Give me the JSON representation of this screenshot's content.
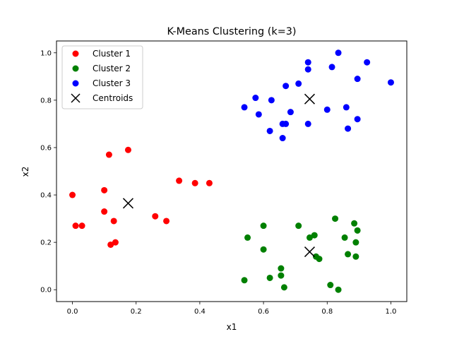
{
  "chart_data": {
    "type": "scatter",
    "title": "K-Means Clustering (k=3)",
    "xlabel": "x1",
    "ylabel": "x2",
    "xlim": [
      -0.05,
      1.05
    ],
    "ylim": [
      -0.05,
      1.05
    ],
    "xticks": [
      "0.0",
      "0.2",
      "0.4",
      "0.6",
      "0.8",
      "1.0"
    ],
    "yticks": [
      "0.0",
      "0.2",
      "0.4",
      "0.6",
      "0.8",
      "1.0"
    ],
    "grid": false,
    "legend_position": "top-left",
    "series": [
      {
        "name": "Cluster 1",
        "color": "#ff0000",
        "marker": "circle",
        "points": [
          [
            0.0,
            0.4
          ],
          [
            0.01,
            0.27
          ],
          [
            0.03,
            0.27
          ],
          [
            0.1,
            0.42
          ],
          [
            0.1,
            0.33
          ],
          [
            0.115,
            0.57
          ],
          [
            0.12,
            0.19
          ],
          [
            0.135,
            0.2
          ],
          [
            0.13,
            0.29
          ],
          [
            0.175,
            0.59
          ],
          [
            0.26,
            0.31
          ],
          [
            0.295,
            0.29
          ],
          [
            0.335,
            0.46
          ],
          [
            0.385,
            0.45
          ],
          [
            0.43,
            0.45
          ]
        ]
      },
      {
        "name": "Cluster 2",
        "color": "#008000",
        "marker": "circle",
        "points": [
          [
            0.54,
            0.04
          ],
          [
            0.55,
            0.22
          ],
          [
            0.6,
            0.27
          ],
          [
            0.6,
            0.17
          ],
          [
            0.62,
            0.05
          ],
          [
            0.655,
            0.09
          ],
          [
            0.655,
            0.06
          ],
          [
            0.665,
            0.01
          ],
          [
            0.71,
            0.27
          ],
          [
            0.745,
            0.22
          ],
          [
            0.76,
            0.23
          ],
          [
            0.765,
            0.14
          ],
          [
            0.775,
            0.13
          ],
          [
            0.81,
            0.02
          ],
          [
            0.825,
            0.3
          ],
          [
            0.835,
            0.0
          ],
          [
            0.855,
            0.22
          ],
          [
            0.865,
            0.15
          ],
          [
            0.885,
            0.28
          ],
          [
            0.89,
            0.2
          ],
          [
            0.89,
            0.14
          ],
          [
            0.895,
            0.25
          ]
        ]
      },
      {
        "name": "Cluster 3",
        "color": "#0000ff",
        "marker": "circle",
        "points": [
          [
            0.54,
            0.77
          ],
          [
            0.575,
            0.81
          ],
          [
            0.585,
            0.74
          ],
          [
            0.62,
            0.67
          ],
          [
            0.625,
            0.8
          ],
          [
            0.66,
            0.64
          ],
          [
            0.66,
            0.7
          ],
          [
            0.67,
            0.7
          ],
          [
            0.67,
            0.86
          ],
          [
            0.685,
            0.75
          ],
          [
            0.71,
            0.87
          ],
          [
            0.74,
            0.7
          ],
          [
            0.74,
            0.96
          ],
          [
            0.74,
            0.93
          ],
          [
            0.8,
            0.76
          ],
          [
            0.815,
            0.94
          ],
          [
            0.835,
            1.0
          ],
          [
            0.86,
            0.77
          ],
          [
            0.865,
            0.68
          ],
          [
            0.895,
            0.72
          ],
          [
            0.895,
            0.89
          ],
          [
            0.925,
            0.96
          ],
          [
            1.0,
            0.875
          ]
        ]
      },
      {
        "name": "Centroids",
        "color": "#000000",
        "marker": "x",
        "points": [
          [
            0.175,
            0.365
          ],
          [
            0.745,
            0.16
          ],
          [
            0.745,
            0.805
          ]
        ]
      }
    ]
  }
}
